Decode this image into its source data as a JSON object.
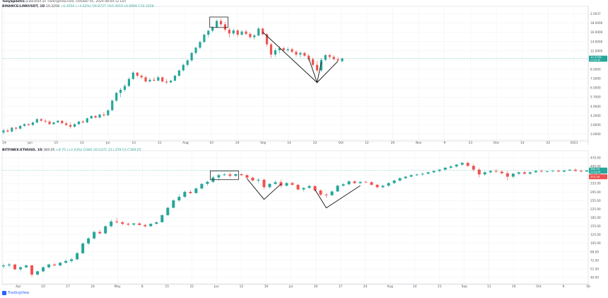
{
  "header": {
    "author": "TonySpilotro",
    "published": "published on TradingView.com, October 05, 2020 08:04:12 EDT"
  },
  "chart_data": [
    {
      "type": "candlestick",
      "symbol": "BINANCE:LINKUSDT, 1D",
      "last": "10.3258",
      "change": "+0.4556 (+4.62%)",
      "ohlc": {
        "o": "9.8727",
        "h": "10.4619",
        "l": "9.6889",
        "c": "10.3258"
      },
      "scale": "log",
      "ylim": [
        2.8,
        23
      ],
      "y_ticks": [
        "2.0037",
        "18.0000",
        "16.0000",
        "14.0000",
        "12.0000",
        "9.9000",
        "8.5000",
        "7.5000",
        "6.5000",
        "5.7000",
        "4.9000",
        "4.2000",
        "3.6000",
        "3.0000"
      ],
      "price_badge": {
        "value": "10.3258",
        "sub": "11:55:46",
        "color": "#26a69a"
      },
      "x_ticks": [
        "19",
        "Jun",
        "15",
        "23",
        "Jul",
        "13",
        "21",
        "Aug",
        "10",
        "24",
        "Sep",
        "14",
        "22",
        "Oct",
        "12",
        "20",
        "Nov",
        "9",
        "23",
        "Dec",
        "14",
        "22",
        "2021"
      ],
      "candles": [
        [
          3.1,
          3.3,
          3.0,
          3.2
        ],
        [
          3.2,
          3.3,
          3.1,
          3.15
        ],
        [
          3.15,
          3.4,
          3.1,
          3.35
        ],
        [
          3.35,
          3.4,
          3.2,
          3.3
        ],
        [
          3.3,
          3.5,
          3.25,
          3.45
        ],
        [
          3.45,
          3.6,
          3.4,
          3.55
        ],
        [
          3.55,
          3.6,
          3.45,
          3.5
        ],
        [
          3.5,
          3.7,
          3.45,
          3.65
        ],
        [
          3.65,
          3.9,
          3.6,
          3.85
        ],
        [
          3.85,
          3.9,
          3.7,
          3.75
        ],
        [
          3.75,
          3.85,
          3.6,
          3.7
        ],
        [
          3.7,
          3.8,
          3.5,
          3.55
        ],
        [
          3.55,
          3.7,
          3.5,
          3.65
        ],
        [
          3.65,
          3.8,
          3.6,
          3.75
        ],
        [
          3.75,
          3.8,
          3.55,
          3.6
        ],
        [
          3.6,
          3.7,
          3.45,
          3.5
        ],
        [
          3.5,
          3.65,
          3.3,
          3.4
        ],
        [
          3.4,
          3.6,
          3.35,
          3.55
        ],
        [
          3.55,
          3.75,
          3.5,
          3.7
        ],
        [
          3.7,
          3.8,
          3.6,
          3.65
        ],
        [
          3.65,
          3.95,
          3.6,
          3.9
        ],
        [
          3.9,
          4.1,
          3.85,
          4.05
        ],
        [
          4.05,
          4.1,
          3.9,
          3.95
        ],
        [
          3.95,
          4.2,
          3.9,
          4.15
        ],
        [
          4.15,
          4.3,
          4.0,
          4.1
        ],
        [
          4.1,
          4.5,
          4.05,
          4.45
        ],
        [
          4.45,
          5.3,
          4.4,
          5.2
        ],
        [
          5.2,
          6.0,
          5.1,
          5.9
        ],
        [
          5.9,
          6.4,
          5.5,
          6.2
        ],
        [
          6.2,
          6.8,
          6.0,
          6.6
        ],
        [
          6.6,
          7.6,
          6.5,
          7.4
        ],
        [
          7.4,
          8.4,
          7.3,
          8.2
        ],
        [
          8.2,
          8.3,
          7.6,
          7.8
        ],
        [
          7.8,
          8.0,
          7.4,
          7.6
        ],
        [
          7.6,
          7.8,
          7.0,
          7.1
        ],
        [
          7.1,
          7.5,
          7.0,
          7.3
        ],
        [
          7.3,
          7.6,
          7.1,
          7.2
        ],
        [
          7.2,
          7.8,
          7.1,
          7.6
        ],
        [
          7.6,
          7.7,
          7.0,
          7.1
        ],
        [
          7.1,
          7.4,
          6.8,
          7.0
        ],
        [
          7.0,
          7.3,
          6.9,
          7.2
        ],
        [
          7.2,
          7.9,
          7.1,
          7.8
        ],
        [
          7.8,
          8.6,
          7.7,
          8.5
        ],
        [
          8.5,
          9.5,
          8.4,
          9.3
        ],
        [
          9.3,
          10.2,
          9.0,
          10.0
        ],
        [
          10.0,
          11.5,
          9.8,
          11.3
        ],
        [
          11.3,
          12.5,
          11.0,
          12.3
        ],
        [
          12.3,
          13.8,
          12.0,
          13.5
        ],
        [
          13.5,
          15.5,
          13.3,
          15.2
        ],
        [
          15.2,
          16.5,
          14.5,
          16.2
        ],
        [
          16.2,
          17.5,
          15.8,
          17.2
        ],
        [
          17.2,
          19.5,
          16.9,
          19.0
        ],
        [
          19.0,
          19.8,
          17.5,
          18.0
        ],
        [
          18.0,
          18.7,
          16.0,
          16.5
        ],
        [
          16.5,
          17.0,
          14.5,
          15.5
        ],
        [
          15.5,
          16.8,
          15.0,
          16.3
        ],
        [
          16.3,
          16.6,
          14.6,
          15.2
        ],
        [
          15.2,
          16.4,
          15.0,
          16.0
        ],
        [
          16.0,
          16.5,
          15.0,
          15.4
        ],
        [
          15.4,
          15.8,
          14.2,
          14.6
        ],
        [
          14.6,
          15.4,
          14.0,
          15.0
        ],
        [
          15.0,
          17.2,
          14.8,
          16.8
        ],
        [
          16.8,
          17.0,
          15.0,
          15.3
        ],
        [
          15.3,
          15.6,
          12.5,
          13.0
        ],
        [
          13.0,
          13.2,
          10.4,
          11.0
        ],
        [
          11.0,
          12.2,
          10.6,
          11.8
        ],
        [
          11.8,
          12.6,
          11.2,
          12.2
        ],
        [
          12.2,
          12.6,
          11.5,
          11.8
        ],
        [
          11.8,
          12.4,
          11.4,
          12.0
        ],
        [
          12.0,
          12.3,
          11.3,
          11.5
        ],
        [
          11.5,
          11.8,
          10.6,
          11.0
        ],
        [
          11.0,
          11.6,
          10.5,
          11.3
        ],
        [
          11.3,
          11.5,
          10.6,
          10.8
        ],
        [
          10.8,
          11.1,
          9.9,
          10.2
        ],
        [
          10.2,
          10.5,
          9.0,
          9.3
        ],
        [
          9.3,
          9.9,
          8.2,
          8.5
        ],
        [
          8.5,
          10.4,
          8.3,
          10.1
        ],
        [
          10.1,
          11.1,
          9.9,
          10.9
        ],
        [
          10.9,
          11.2,
          10.3,
          10.6
        ],
        [
          10.6,
          10.9,
          10.0,
          10.2
        ],
        [
          10.2,
          10.6,
          9.9,
          10.0
        ],
        [
          9.87,
          10.46,
          9.69,
          10.33
        ]
      ],
      "annotations": [
        {
          "kind": "box",
          "label": "top"
        },
        {
          "kind": "v-pattern",
          "label": "first bottom"
        },
        {
          "kind": "v-pattern",
          "label": "second bottom"
        }
      ]
    },
    {
      "type": "candlestick",
      "symbol": "BITFINEX:ETHUSD, 1D",
      "last": "369.05",
      "change": "+8.75 (+2.43%)",
      "ohlc": {
        "o": "360.30",
        "h": "371.33",
        "l": "359.53",
        "c": "369.05"
      },
      "scale": "log",
      "ylim": [
        38,
        520
      ],
      "y_ticks": [
        "470.00",
        "400.00",
        "365.00",
        "335.00",
        "295.00",
        "255.00",
        "225.00",
        "185.00",
        "155.00",
        "125.00",
        "105.00",
        "89.00",
        "72.00",
        "51.00",
        "40.00"
      ],
      "price_badge": {
        "value": "369.05",
        "sub": "11:55:46",
        "color": "#26a69a"
      },
      "price_badge2": {
        "value": "353.49",
        "color": "#ef5350"
      },
      "x_ticks": [
        "Apr",
        "10",
        "17",
        "24",
        "May",
        "8",
        "15",
        "22",
        "Jun",
        "12",
        "19",
        "Jul",
        "10",
        "17",
        "24",
        "Aug",
        "14",
        "21",
        "Sep",
        "11",
        "16",
        "Oct",
        "9",
        "16"
      ],
      "candles": [
        [
          52,
          55,
          50,
          53
        ],
        [
          53,
          56,
          51,
          54
        ],
        [
          54,
          55,
          48,
          49
        ],
        [
          49,
          52,
          47,
          51
        ],
        [
          51,
          54,
          50,
          53
        ],
        [
          53,
          54,
          42,
          44
        ],
        [
          44,
          48,
          43,
          47
        ],
        [
          47,
          52,
          46,
          51
        ],
        [
          51,
          55,
          50,
          54
        ],
        [
          54,
          56,
          52,
          53
        ],
        [
          53,
          57,
          52,
          56
        ],
        [
          56,
          60,
          55,
          58
        ],
        [
          58,
          62,
          56,
          60
        ],
        [
          60,
          70,
          59,
          68
        ],
        [
          68,
          85,
          67,
          83
        ],
        [
          83,
          95,
          80,
          92
        ],
        [
          92,
          108,
          90,
          105
        ],
        [
          105,
          110,
          100,
          102
        ],
        [
          102,
          120,
          100,
          118
        ],
        [
          118,
          135,
          115,
          130
        ],
        [
          130,
          140,
          125,
          128
        ],
        [
          128,
          132,
          120,
          124
        ],
        [
          124,
          128,
          118,
          122
        ],
        [
          122,
          126,
          119,
          125
        ],
        [
          125,
          128,
          120,
          121
        ],
        [
          121,
          124,
          115,
          118
        ],
        [
          118,
          125,
          117,
          124
        ],
        [
          124,
          130,
          122,
          128
        ],
        [
          128,
          150,
          127,
          148
        ],
        [
          148,
          175,
          146,
          172
        ],
        [
          172,
          205,
          170,
          200
        ],
        [
          200,
          225,
          195,
          215
        ],
        [
          215,
          245,
          210,
          238
        ],
        [
          238,
          248,
          228,
          232
        ],
        [
          232,
          260,
          230,
          255
        ],
        [
          255,
          285,
          250,
          280
        ],
        [
          280,
          300,
          270,
          292
        ],
        [
          292,
          330,
          285,
          320
        ],
        [
          320,
          345,
          300,
          335
        ],
        [
          335,
          350,
          330,
          340
        ],
        [
          340,
          355,
          320,
          330
        ],
        [
          330,
          345,
          325,
          342
        ],
        [
          342,
          348,
          330,
          335
        ],
        [
          335,
          340,
          310,
          318
        ],
        [
          318,
          325,
          295,
          300
        ],
        [
          300,
          315,
          285,
          305
        ],
        [
          305,
          312,
          250,
          262
        ],
        [
          262,
          285,
          255,
          280
        ],
        [
          280,
          300,
          275,
          290
        ],
        [
          290,
          305,
          260,
          270
        ],
        [
          270,
          290,
          265,
          285
        ],
        [
          285,
          292,
          270,
          275
        ],
        [
          275,
          282,
          245,
          250
        ],
        [
          250,
          262,
          240,
          258
        ],
        [
          258,
          275,
          255,
          268
        ],
        [
          268,
          272,
          240,
          245
        ],
        [
          245,
          250,
          218,
          225
        ],
        [
          225,
          232,
          210,
          222
        ],
        [
          222,
          245,
          220,
          240
        ],
        [
          240,
          275,
          238,
          270
        ],
        [
          270,
          285,
          265,
          278
        ],
        [
          278,
          300,
          272,
          295
        ],
        [
          295,
          302,
          280,
          285
        ],
        [
          285,
          295,
          280,
          292
        ],
        [
          292,
          298,
          285,
          290
        ],
        [
          290,
          295,
          270,
          275
        ],
        [
          275,
          280,
          255,
          262
        ],
        [
          262,
          275,
          255,
          270
        ],
        [
          270,
          290,
          265,
          285
        ],
        [
          285,
          305,
          280,
          300
        ],
        [
          300,
          320,
          295,
          315
        ],
        [
          315,
          330,
          310,
          325
        ],
        [
          325,
          340,
          320,
          335
        ],
        [
          335,
          345,
          328,
          340
        ],
        [
          340,
          350,
          330,
          345
        ],
        [
          345,
          360,
          340,
          355
        ],
        [
          355,
          370,
          348,
          365
        ],
        [
          365,
          380,
          355,
          375
        ],
        [
          375,
          395,
          365,
          390
        ],
        [
          390,
          410,
          380,
          400
        ],
        [
          400,
          420,
          390,
          415
        ],
        [
          415,
          440,
          405,
          430
        ],
        [
          430,
          445,
          395,
          405
        ],
        [
          405,
          420,
          360,
          375
        ],
        [
          375,
          390,
          320,
          340
        ],
        [
          340,
          365,
          330,
          355
        ],
        [
          355,
          370,
          345,
          365
        ],
        [
          365,
          380,
          350,
          360
        ],
        [
          360,
          372,
          340,
          348
        ],
        [
          348,
          365,
          300,
          325
        ],
        [
          325,
          350,
          315,
          345
        ],
        [
          345,
          360,
          335,
          355
        ],
        [
          355,
          365,
          340,
          345
        ],
        [
          345,
          360,
          338,
          355
        ],
        [
          355,
          372,
          350,
          365
        ],
        [
          365,
          375,
          355,
          360
        ],
        [
          360,
          368,
          352,
          362
        ],
        [
          362,
          370,
          355,
          366
        ],
        [
          366,
          375,
          358,
          360
        ],
        [
          360,
          372,
          355,
          368
        ],
        [
          368,
          380,
          362,
          374
        ],
        [
          374,
          385,
          360,
          365
        ],
        [
          365,
          378,
          355,
          360
        ],
        [
          360.3,
          371.3,
          359.5,
          369.05
        ]
      ],
      "annotations": [
        {
          "kind": "box",
          "label": "top"
        },
        {
          "kind": "v-pattern",
          "label": "first bottom"
        },
        {
          "kind": "v-pattern",
          "label": "second bottom"
        }
      ]
    }
  ],
  "branding": {
    "name": "TradingView"
  },
  "colors": {
    "up": "#26a69a",
    "down": "#ef5350",
    "grid": "#eef0f3",
    "axis": "#d0d3da",
    "text": "#131722",
    "accent": "#2962ff"
  }
}
